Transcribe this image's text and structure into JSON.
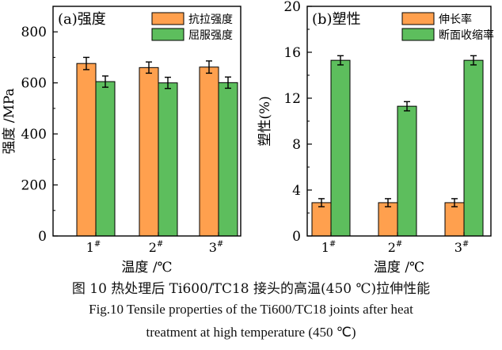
{
  "caption": {
    "cn": "图 10  热处理后 Ti600/TC18 接头的高温(450 ℃)拉伸性能",
    "en_line1": "Fig.10  Tensile properties of the Ti600/TC18 joints after heat",
    "en_line2": "treatment at high temperature (450 ℃)"
  },
  "chart_data": [
    {
      "type": "bar",
      "title": "(a)强度",
      "xlabel": "温度 /℃",
      "ylabel": "强度 /MPa",
      "categories": [
        "1#",
        "2#",
        "3#"
      ],
      "ylim": [
        0,
        900
      ],
      "yticks": [
        "0",
        "200",
        "400",
        "600",
        "800"
      ],
      "legend_position": "top-right",
      "series": [
        {
          "name": "抗拉强度",
          "color": "#FFA04E",
          "values": [
            676,
            660,
            662
          ],
          "errors": [
            24,
            22,
            24
          ]
        },
        {
          "name": "屈服强度",
          "color": "#5DBE5D",
          "values": [
            605,
            600,
            601
          ],
          "errors": [
            22,
            22,
            22
          ]
        }
      ]
    },
    {
      "type": "bar",
      "title": "(b)塑性",
      "xlabel": "温度 /℃",
      "ylabel": "塑性(%)",
      "categories": [
        "1#",
        "2#",
        "3#"
      ],
      "ylim": [
        0,
        20
      ],
      "yticks": [
        "0",
        "4",
        "8",
        "12",
        "16",
        "20"
      ],
      "legend_position": "top-right",
      "series": [
        {
          "name": "伸长率",
          "color": "#FFA04E",
          "values": [
            2.9,
            2.9,
            2.9
          ],
          "errors": [
            0.35,
            0.35,
            0.35
          ]
        },
        {
          "name": "断面收缩率",
          "color": "#5DBE5D",
          "values": [
            15.3,
            11.3,
            15.3
          ],
          "errors": [
            0.4,
            0.4,
            0.4
          ]
        }
      ]
    }
  ]
}
